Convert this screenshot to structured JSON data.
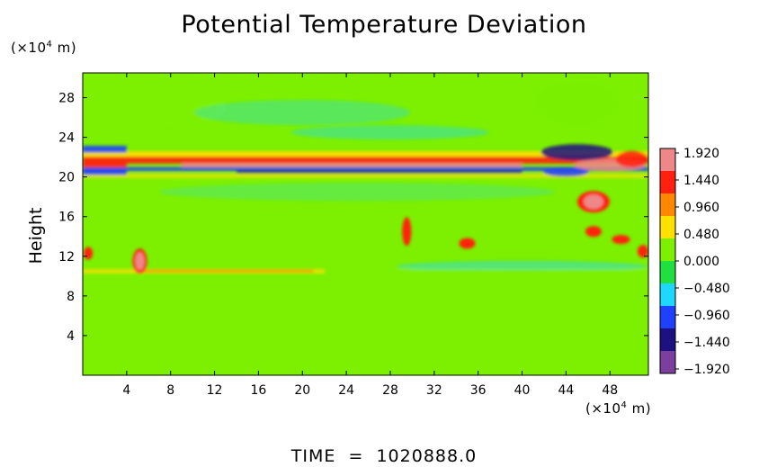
{
  "chart_data": {
    "type": "heatmap",
    "title": "Potential Temperature Deviation",
    "xlabel": "",
    "ylabel": "Height",
    "x_unit_prefix": "(×10",
    "x_unit_exp": "4",
    "x_unit_suffix": " m)",
    "y_unit_prefix": "(×10",
    "y_unit_exp": "4",
    "y_unit_suffix": " m)",
    "xlim": [
      0,
      51.5
    ],
    "ylim": [
      0,
      30.5
    ],
    "xticks": [
      4,
      8,
      12,
      16,
      20,
      24,
      28,
      32,
      36,
      40,
      44,
      48
    ],
    "yticks": [
      4,
      8,
      12,
      16,
      20,
      24,
      28
    ],
    "colorbar": {
      "min": -2.0,
      "max": 2.0,
      "labels": [
        "1.920",
        "1.440",
        "0.960",
        "0.480",
        "0.000",
        "−0.480",
        "−0.960",
        "−1.440",
        "−1.920"
      ],
      "label_values": [
        1.92,
        1.44,
        0.96,
        0.48,
        0.0,
        -0.48,
        -0.96,
        -1.44,
        -1.92
      ],
      "colors": [
        "#7b3f9e",
        "#1d1080",
        "#2040ff",
        "#1fd6ff",
        "#20e040",
        "#7cf000",
        "#ffe000",
        "#ff8800",
        "#ff2010",
        "#ee8888"
      ]
    },
    "features": [
      {
        "x": 25,
        "y": 20.8,
        "value": -1.3
      },
      {
        "x": 25,
        "y": 21.6,
        "value": 1.2
      },
      {
        "x": 5,
        "y": 11.5,
        "value": 1.9
      },
      {
        "x": 29.5,
        "y": 14.5,
        "value": 1.5
      },
      {
        "x": 35,
        "y": 13.3,
        "value": 1.3
      },
      {
        "x": 46.5,
        "y": 17.5,
        "value": 1.9
      },
      {
        "x": 46.5,
        "y": 14.0,
        "value": 1.4
      },
      {
        "x": 45,
        "y": 22.2,
        "value": -1.6
      },
      {
        "x": 1,
        "y": 22.5,
        "value": -1.6
      }
    ],
    "time_label": "TIME  =  1020888.0"
  }
}
